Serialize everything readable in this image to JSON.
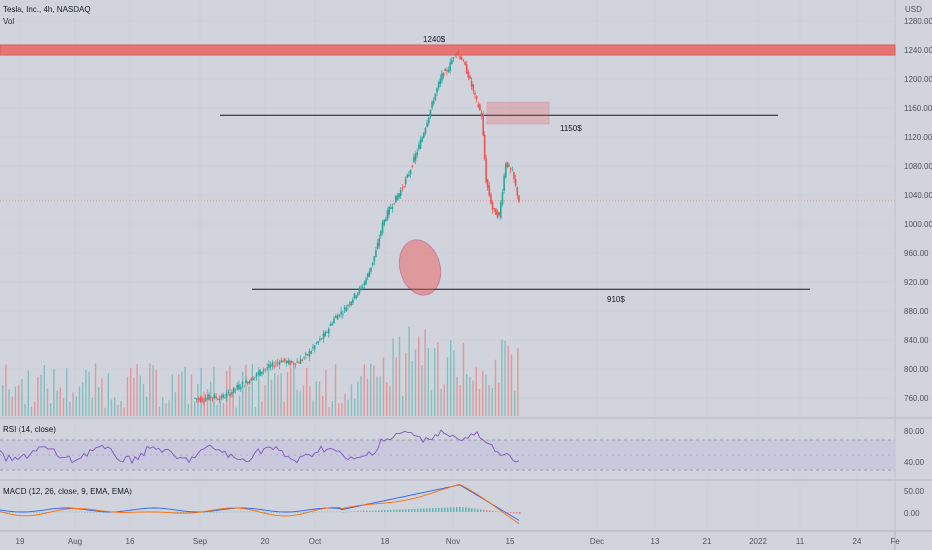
{
  "header": {
    "title": "Tesla, Inc., 4h, NASDAQ",
    "vol_label": "Vol",
    "currency": "USD"
  },
  "colors": {
    "background": "#d1d4dc",
    "up": "#26a69a",
    "down": "#ef5350",
    "rsi_line": "#7e57c2",
    "macd_line": "#2962ff",
    "signal_line": "#ff6d00",
    "zone_red": "#ef5350"
  },
  "chart_data": {
    "type": "candlestick",
    "ylim": [
      740,
      1290
    ],
    "y_ticks": [
      "1280.00",
      "1240.00",
      "1200.00",
      "1160.00",
      "1120.00",
      "1080.00",
      "1040.00",
      "1000.00",
      "960.00",
      "920.00",
      "880.00",
      "840.00",
      "800.00",
      "760.00"
    ],
    "x_ticks": [
      "19",
      "Aug",
      "16",
      "Sep",
      "20",
      "Oct",
      "18",
      "Nov",
      "15",
      "Dec",
      "13",
      "21",
      "2022",
      "11",
      "24",
      "Fe"
    ],
    "current_price_line": 1032,
    "annotations": {
      "resistance_zone": {
        "low": 1233,
        "high": 1247,
        "label": "1240$"
      },
      "line_1150": {
        "value": 1150,
        "label": "1150$"
      },
      "line_910": {
        "value": 910,
        "label": "910$"
      },
      "rect_zone": {
        "low": 1138,
        "high": 1168
      },
      "ellipse_center": 940
    },
    "price_path": [
      [
        0,
        760
      ],
      [
        8,
        758
      ],
      [
        16,
        762
      ],
      [
        24,
        760
      ],
      [
        32,
        765
      ],
      [
        40,
        775
      ],
      [
        48,
        782
      ],
      [
        56,
        790
      ],
      [
        64,
        800
      ],
      [
        72,
        805
      ],
      [
        80,
        812
      ],
      [
        88,
        808
      ],
      [
        96,
        810
      ],
      [
        104,
        820
      ],
      [
        112,
        835
      ],
      [
        120,
        848
      ],
      [
        128,
        870
      ],
      [
        136,
        880
      ],
      [
        142,
        892
      ],
      [
        148,
        904
      ],
      [
        154,
        915
      ],
      [
        160,
        935
      ],
      [
        166,
        962
      ],
      [
        172,
        1000
      ],
      [
        178,
        1020
      ],
      [
        184,
        1035
      ],
      [
        190,
        1050
      ],
      [
        196,
        1070
      ],
      [
        202,
        1095
      ],
      [
        208,
        1120
      ],
      [
        214,
        1150
      ],
      [
        220,
        1180
      ],
      [
        226,
        1205
      ],
      [
        232,
        1215
      ],
      [
        238,
        1238
      ],
      [
        244,
        1228
      ],
      [
        250,
        1205
      ],
      [
        256,
        1175
      ],
      [
        262,
        1150
      ],
      [
        266,
        1060
      ],
      [
        272,
        1020
      ],
      [
        278,
        1010
      ],
      [
        284,
        1085
      ],
      [
        290,
        1070
      ],
      [
        296,
        1032
      ]
    ],
    "rsi": {
      "label": "RSI (14, close)",
      "upper": 70,
      "lower": 30,
      "ticks": [
        "80.00",
        "40.00"
      ]
    },
    "macd": {
      "label": "MACD (12, 26, close, 9, EMA, EMA)",
      "ticks": [
        "50.00",
        "0.00"
      ]
    }
  }
}
